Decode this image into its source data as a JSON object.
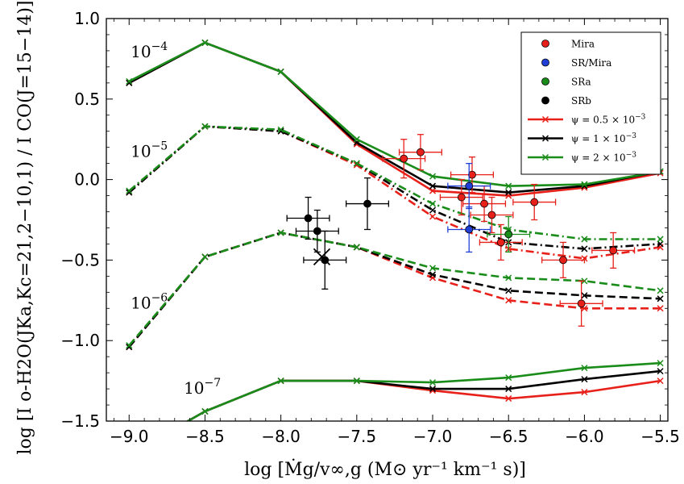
{
  "chart_data": {
    "type": "line",
    "xlabel": "log [Ṁg/v∞,g (M⊙ yr⁻¹ km⁻¹ s)]",
    "ylabel": "log [I o-H2O(JKa,Kc=21,2−10,1) / I CO(J=15−14)]",
    "xlim": [
      -9.15,
      -5.45
    ],
    "ylim": [
      -1.5,
      1.0
    ],
    "xticks": [
      -9.0,
      -8.5,
      -8.0,
      -7.5,
      -7.0,
      -6.5,
      -6.0,
      -5.5
    ],
    "xtick_labels": [
      "−9.0",
      "−8.5",
      "−8.0",
      "−7.5",
      "−7.0",
      "−6.5",
      "−6.0",
      "−5.5"
    ],
    "yticks": [
      -1.5,
      -1.0,
      -0.5,
      0.0,
      0.5,
      1.0
    ],
    "ytick_labels": [
      "−1.5",
      "−1.0",
      "−0.5",
      "0.0",
      "0.5",
      "1.0"
    ],
    "grid": false,
    "legend_position": "top-right",
    "annotations": [
      {
        "text": "10",
        "exp": "−4",
        "x": -8.99,
        "y": 0.76
      },
      {
        "text": "10",
        "exp": "−5",
        "x": -8.99,
        "y": 0.14
      },
      {
        "text": "10",
        "exp": "−6",
        "x": -8.99,
        "y": -0.8
      },
      {
        "text": "10",
        "exp": "−7",
        "x": -8.64,
        "y": -1.33
      }
    ],
    "model_x": [
      -9.0,
      -8.5,
      -8.0,
      -7.5,
      -7.0,
      -6.5,
      -6.0,
      -5.5
    ],
    "model_groups": [
      {
        "id": "1e-4",
        "dash": "solid",
        "lines": [
          {
            "color": "#e8201a",
            "values": [
              0.6,
              0.85,
              0.67,
              0.22,
              -0.07,
              -0.1,
              -0.05,
              0.04
            ]
          },
          {
            "color": "#000000",
            "values": [
              0.6,
              0.85,
              0.67,
              0.23,
              -0.04,
              -0.08,
              -0.04,
              0.05
            ]
          },
          {
            "color": "#1a8c1a",
            "values": [
              0.61,
              0.85,
              0.67,
              0.25,
              0.02,
              -0.04,
              -0.03,
              0.05
            ]
          }
        ]
      },
      {
        "id": "1e-5",
        "dash": "dashdot",
        "lines": [
          {
            "color": "#e8201a",
            "values": [
              -0.08,
              0.33,
              0.3,
              0.09,
              -0.23,
              -0.43,
              -0.49,
              -0.42
            ]
          },
          {
            "color": "#000000",
            "values": [
              -0.08,
              0.33,
              0.3,
              0.1,
              -0.19,
              -0.39,
              -0.43,
              -0.4
            ]
          },
          {
            "color": "#1a8c1a",
            "values": [
              -0.07,
              0.33,
              0.31,
              0.1,
              -0.15,
              -0.31,
              -0.37,
              -0.37
            ]
          }
        ]
      },
      {
        "id": "1e-6",
        "dash": "dashed",
        "lines": [
          {
            "color": "#e8201a",
            "values": [
              -1.04,
              -0.48,
              -0.33,
              -0.42,
              -0.61,
              -0.75,
              -0.8,
              -0.8
            ]
          },
          {
            "color": "#000000",
            "values": [
              -1.04,
              -0.48,
              -0.33,
              -0.42,
              -0.59,
              -0.69,
              -0.72,
              -0.74
            ]
          },
          {
            "color": "#1a8c1a",
            "values": [
              -1.03,
              -0.48,
              -0.33,
              -0.42,
              -0.55,
              -0.61,
              -0.63,
              -0.69
            ]
          }
        ]
      },
      {
        "id": "1e-7",
        "dash": "solid",
        "lines": [
          {
            "color": "#e8201a",
            "x": [
              -8.65,
              -8.5,
              -8.0,
              -7.5,
              -7.0,
              -6.5,
              -6.0,
              -5.5
            ],
            "values": [
              -1.52,
              -1.44,
              -1.25,
              -1.25,
              -1.31,
              -1.36,
              -1.32,
              -1.25
            ]
          },
          {
            "color": "#000000",
            "x": [
              -8.65,
              -8.5,
              -8.0,
              -7.5,
              -7.0,
              -6.5,
              -6.0,
              -5.5
            ],
            "values": [
              -1.52,
              -1.44,
              -1.25,
              -1.25,
              -1.3,
              -1.3,
              -1.24,
              -1.19
            ]
          },
          {
            "color": "#1a8c1a",
            "x": [
              -8.65,
              -8.5,
              -8.0,
              -7.5,
              -7.0,
              -6.5,
              -6.0,
              -5.5
            ],
            "values": [
              -1.52,
              -1.44,
              -1.25,
              -1.25,
              -1.26,
              -1.23,
              -1.17,
              -1.14
            ]
          }
        ]
      }
    ],
    "observations": [
      {
        "class": "Mira",
        "color": "#e8201a",
        "x": -7.19,
        "y": 0.13,
        "xerr": 0.14,
        "yerr": 0.12
      },
      {
        "class": "Mira",
        "color": "#e8201a",
        "x": -7.08,
        "y": 0.17,
        "xerr": 0.14,
        "yerr": 0.11
      },
      {
        "class": "Mira",
        "color": "#e8201a",
        "x": -6.74,
        "y": 0.03,
        "xerr": 0.14,
        "yerr": 0.11
      },
      {
        "class": "Mira",
        "color": "#e8201a",
        "x": -6.81,
        "y": -0.11,
        "xerr": 0.14,
        "yerr": 0.11
      },
      {
        "class": "Mira",
        "color": "#e8201a",
        "x": -6.66,
        "y": -0.15,
        "xerr": 0.14,
        "yerr": 0.11
      },
      {
        "class": "Mira",
        "color": "#e8201a",
        "x": -6.61,
        "y": -0.22,
        "xerr": 0.14,
        "yerr": 0.11
      },
      {
        "class": "Mira",
        "color": "#e8201a",
        "x": -6.33,
        "y": -0.14,
        "xerr": 0.14,
        "yerr": 0.11
      },
      {
        "class": "Mira",
        "color": "#e8201a",
        "x": -6.55,
        "y": -0.39,
        "xerr": 0.14,
        "yerr": 0.11
      },
      {
        "class": "Mira",
        "color": "#e8201a",
        "x": -6.14,
        "y": -0.5,
        "xerr": 0.14,
        "yerr": 0.11
      },
      {
        "class": "Mira",
        "color": "#e8201a",
        "x": -5.81,
        "y": -0.44,
        "xerr": 0.14,
        "yerr": 0.11
      },
      {
        "class": "Mira",
        "color": "#e8201a",
        "x": -6.02,
        "y": -0.77,
        "xerr": 0.14,
        "yerr": 0.14
      },
      {
        "class": "SR/Mira",
        "color": "#1f3fd6",
        "x": -6.76,
        "y": -0.04,
        "xerr": 0.14,
        "yerr": 0.14
      },
      {
        "class": "SR/Mira",
        "color": "#1f3fd6",
        "x": -6.76,
        "y": -0.31,
        "xerr": 0.14,
        "yerr": 0.14
      },
      {
        "class": "SRa",
        "color": "#1a8c1a",
        "x": -6.5,
        "y": -0.34,
        "xerr": 0.14,
        "yerr": 0.11
      },
      {
        "class": "SRb",
        "color": "#000000",
        "x": -7.82,
        "y": -0.24,
        "xerr": 0.14,
        "yerr": 0.13
      },
      {
        "class": "SRb",
        "color": "#000000",
        "x": -7.76,
        "y": -0.32,
        "xerr": 0.14,
        "yerr": 0.13
      },
      {
        "class": "SRb",
        "color": "#000000",
        "x": -7.43,
        "y": -0.15,
        "xerr": 0.14,
        "yerr": 0.16
      },
      {
        "class": "SRb",
        "color": "#000000",
        "x": -7.71,
        "y": -0.5,
        "xerr": 0.14,
        "yerr": 0.18
      }
    ],
    "cross_marker": {
      "x": -7.73,
      "y": -0.48
    },
    "legend": [
      {
        "type": "marker",
        "color": "#e8201a",
        "label": "Mira"
      },
      {
        "type": "marker",
        "color": "#1f3fd6",
        "label": "SR/Mira"
      },
      {
        "type": "marker",
        "color": "#1a8c1a",
        "label": "SRa"
      },
      {
        "type": "marker",
        "color": "#000000",
        "label": "SRb"
      },
      {
        "type": "line",
        "color": "#e8201a",
        "label": "ψ = 0.5 × 10",
        "exp": "−3"
      },
      {
        "type": "line",
        "color": "#000000",
        "label": "ψ = 1 × 10",
        "exp": "−3"
      },
      {
        "type": "line",
        "color": "#1a8c1a",
        "label": "ψ = 2 × 10",
        "exp": "−3"
      }
    ]
  }
}
